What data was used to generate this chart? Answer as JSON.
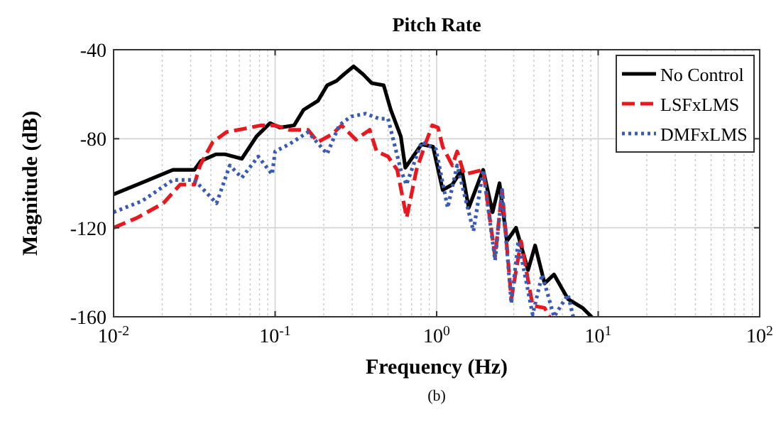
{
  "chart_data": {
    "type": "line",
    "title": "Pitch Rate",
    "xlabel": "Frequency (Hz)",
    "ylabel": "Magnitude (dB)",
    "log": "x",
    "grid": true,
    "legend": "top right",
    "annotations": [
      "(b)"
    ],
    "xlim": [
      0.01,
      100
    ],
    "xticks": [
      {
        "value": 0.01,
        "label": "10$^{-2}$"
      },
      {
        "value": 0.1,
        "label": "10$^{-1}$"
      },
      {
        "value": 1,
        "label": "10$^{0}$"
      },
      {
        "value": 10,
        "label": "10$^{1}$"
      },
      {
        "value": 100,
        "label": "10$^{2}$"
      }
    ],
    "ylim": [
      -160,
      -40
    ],
    "yticks": [
      -160,
      -120,
      -80,
      -40
    ],
    "series": [
      {
        "name": "No Control",
        "color": "#000000",
        "line_style": "solid",
        "x": [
          0.01,
          0.0233,
          0.0316,
          0.0347,
          0.0429,
          0.049,
          0.0622,
          0.0766,
          0.093,
          0.107,
          0.131,
          0.15,
          0.184,
          0.21,
          0.24,
          0.267,
          0.306,
          0.35,
          0.396,
          0.47,
          0.52,
          0.6,
          0.64,
          0.806,
          0.95,
          1.09,
          1.25,
          1.43,
          1.58,
          1.94,
          2.22,
          2.45,
          2.72,
          3.1,
          3.68,
          4.07,
          4.66,
          5.33,
          6.5,
          8.0,
          9.1
        ],
        "values": [
          -105,
          -94,
          -94,
          -90,
          -87,
          -87,
          -89,
          -79,
          -73,
          -75,
          -74,
          -67,
          -63,
          -56,
          -54,
          -51,
          -47.5,
          -51,
          -55,
          -56,
          -67,
          -79,
          -93,
          -82.5,
          -83.6,
          -103,
          -100.6,
          -94,
          -111,
          -94,
          -113,
          -100,
          -126,
          -120,
          -139,
          -128,
          -145,
          -141,
          -152,
          -156,
          -160
        ]
      },
      {
        "name": "LSFxLMS",
        "color": "#e8191e",
        "line_style": "dashed",
        "x": [
          0.01,
          0.014,
          0.0203,
          0.0258,
          0.0316,
          0.0343,
          0.0411,
          0.05,
          0.0644,
          0.0816,
          0.1,
          0.122,
          0.16,
          0.184,
          0.225,
          0.258,
          0.316,
          0.385,
          0.425,
          0.5,
          0.57,
          0.652,
          0.75,
          0.86,
          0.94,
          1.02,
          1.09,
          1.25,
          1.34,
          1.48,
          1.94,
          2.3,
          2.54,
          2.9,
          3.33,
          3.93,
          4.66,
          5.0
        ],
        "values": [
          -120,
          -115.5,
          -109,
          -100.6,
          -100.6,
          -92,
          -81.5,
          -77,
          -75.5,
          -74,
          -74,
          -76,
          -76,
          -81.5,
          -78,
          -74,
          -80.4,
          -76,
          -85.7,
          -88,
          -94,
          -115.5,
          -94,
          -81.5,
          -74,
          -75,
          -83.6,
          -92,
          -85.7,
          -96,
          -94,
          -133,
          -103,
          -152,
          -126,
          -155,
          -156,
          -160
        ]
      },
      {
        "name": "DMFxLMS",
        "color": "#3a5bb5",
        "line_style": "dotted",
        "x": [
          0.01,
          0.015,
          0.0233,
          0.0316,
          0.0434,
          0.0524,
          0.0622,
          0.0786,
          0.0958,
          0.1,
          0.122,
          0.16,
          0.21,
          0.249,
          0.295,
          0.363,
          0.44,
          0.5,
          0.6,
          0.65,
          0.806,
          0.99,
          1.17,
          1.34,
          1.69,
          1.94,
          2.3,
          2.54,
          2.9,
          3.2,
          3.93,
          4.5,
          5.33,
          6.5,
          7.0
        ],
        "values": [
          -113,
          -108,
          -98.5,
          -98.5,
          -109,
          -92,
          -97.5,
          -88,
          -96,
          -85.7,
          -82.5,
          -77,
          -86.8,
          -74,
          -70,
          -68.7,
          -71,
          -71,
          -94,
          -100.6,
          -81.5,
          -84.7,
          -111,
          -92,
          -121.5,
          -94,
          -134.7,
          -103,
          -154,
          -126,
          -159,
          -141,
          -160,
          -150,
          -160
        ]
      }
    ]
  }
}
